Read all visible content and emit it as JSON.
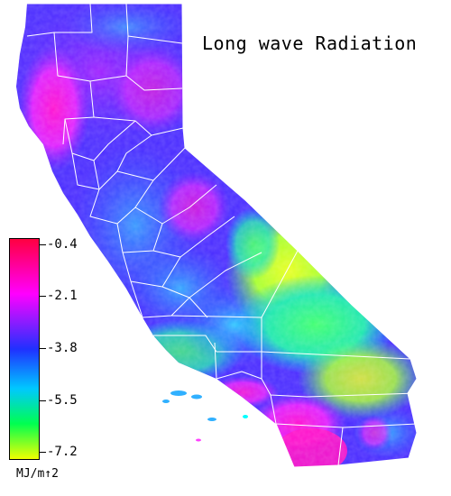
{
  "title": "Long wave Radiation",
  "legend": {
    "ticks": [
      "-0.4",
      "-2.1",
      "-3.8",
      "-5.5",
      "-7.2"
    ],
    "units": "MJ/m↑2"
  },
  "colors": {
    "high": "#ff0040",
    "upper": "#ff00ff",
    "mid_high": "#8a1cff",
    "mid": "#2030ff",
    "mid_low": "#00c8ff",
    "low": "#00ff50",
    "lowest": "#f0ff00"
  }
}
